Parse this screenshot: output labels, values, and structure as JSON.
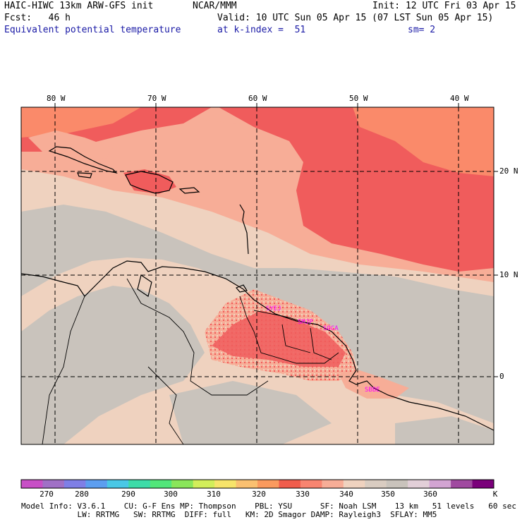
{
  "header": {
    "line1_left": "HAIC-HIWC 13km ARW-GFS init",
    "line1_mid": "NCAR/MMM",
    "line1_right": "Init: 12 UTC Fri 03 Apr 15",
    "line2_left": "Fcst:   46 h",
    "line2_right": "Valid: 10 UTC Sun 05 Apr 15 (07 LST Sun 05 Apr 15)",
    "line3_left": "Equivalent potential temperature",
    "line3_mid": "at k-index =  51",
    "line3_right": "sm= 2"
  },
  "map": {
    "lon_labels": [
      "80 W",
      "70 W",
      "60 W",
      "50 W",
      "40 W"
    ],
    "lat_labels": [
      "20 N",
      "10 N",
      "0"
    ],
    "stations": [
      "SYEJ",
      "SMJP",
      "SOCA",
      "SBBE"
    ],
    "colors": {
      "ocean_south": "#c9c3bc",
      "land": "#efd2bf",
      "warm": "#f7ad97",
      "hot": "#f05c5c",
      "hotter": "#fa8a6a",
      "coast": "#000000",
      "grid": "#000000",
      "station": "#ff00ff"
    }
  },
  "colorbar": {
    "labels": [
      "270",
      "280",
      "290",
      "300",
      "310",
      "320",
      "330",
      "340",
      "350",
      "360",
      "K"
    ],
    "colors": [
      "#c84fc6",
      "#a070c6",
      "#7f7fe6",
      "#5c9ef0",
      "#4ac8e6",
      "#3ddca8",
      "#52e67a",
      "#8ae65a",
      "#d2ee5a",
      "#f7e46a",
      "#fac070",
      "#fa9a5e",
      "#f05c4c",
      "#f88470",
      "#f7ad97",
      "#efd2bf",
      "#d9ccc1",
      "#c9c3bc",
      "#e2cfd8",
      "#d2a4d2",
      "#a04aa0",
      "#7a007a"
    ]
  },
  "footer": {
    "line1": "Model Info: V3.6.1    CU: G-F Ens MP: Thompson    PBL: YSU      SF: Noah LSM    13 km   51 levels   60 sec",
    "line2": "            LW: RRTMG   SW: RRTMG  DIFF: full   KM: 2D Smagor DAMP: Rayleigh3  SFLAY: MM5"
  }
}
